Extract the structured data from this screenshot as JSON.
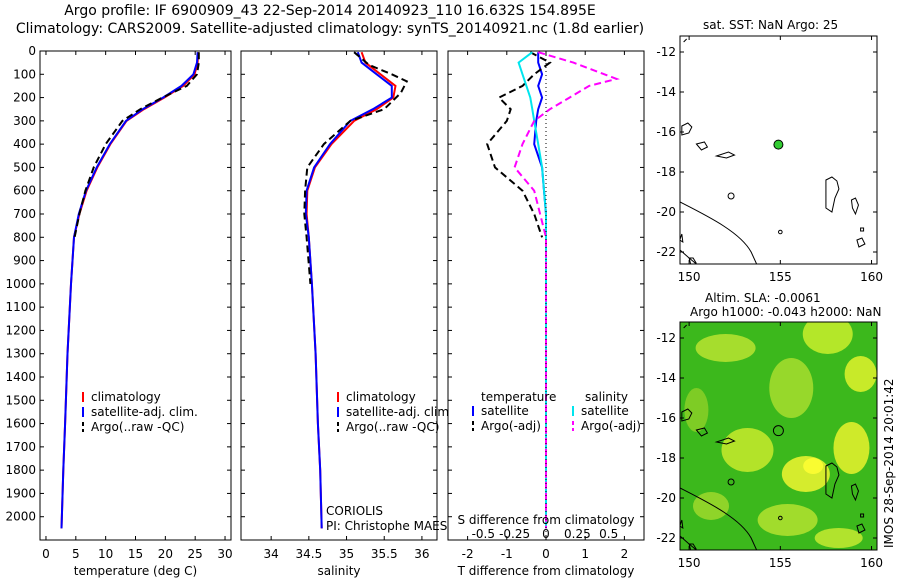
{
  "title": {
    "line1": "Argo profile: IF 6900909_43 22-Sep-2014 20140923_110 16.632S 154.895E",
    "line2": "Climatology: CARS2009. Satellite-adjusted climatology: synTS_20140921.nc (1.8d earlier)"
  },
  "colors": {
    "climatology": "#ff0000",
    "satellite": "#0000ff",
    "argo": "#000000",
    "sal_satellite": "#00e5ee",
    "sal_argo": "#ff00ff",
    "sla_light": "#ffff33",
    "sla_dark": "#1eae14"
  },
  "chart_data": [
    {
      "type": "line",
      "id": "temperature",
      "xlabel": "temperature (deg C)",
      "xlim": [
        -1,
        31
      ],
      "ylim": [
        2100,
        0
      ],
      "xticks": [
        0,
        5,
        10,
        15,
        20,
        25,
        30
      ],
      "yticks": [
        0,
        100,
        200,
        300,
        400,
        500,
        600,
        700,
        800,
        900,
        1000,
        1100,
        1200,
        1300,
        1400,
        1500,
        1600,
        1700,
        1800,
        1900,
        2000
      ],
      "legend": {
        "items": [
          "climatology",
          "satellite-adj. clim.",
          "Argo(..raw -QC)"
        ],
        "placement": "bottom-left"
      },
      "series": [
        {
          "name": "climatology",
          "x": [
            25.5,
            25.4,
            24.9,
            23.0,
            19.8,
            16.4,
            13.5,
            10.8,
            8.6,
            6.8,
            5.6,
            4.7,
            4.2,
            3.6,
            3.2,
            2.9,
            2.6
          ],
          "y": [
            5,
            50,
            100,
            150,
            200,
            250,
            300,
            400,
            500,
            600,
            700,
            800,
            1000,
            1300,
            1600,
            1800,
            2050
          ]
        },
        {
          "name": "satellite-adj. clim.",
          "x": [
            25.4,
            25.3,
            24.7,
            22.7,
            19.6,
            16.2,
            13.4,
            10.7,
            8.5,
            6.7,
            5.5,
            4.7,
            4.2,
            3.6,
            3.2,
            2.9,
            2.6
          ],
          "y": [
            5,
            50,
            100,
            150,
            200,
            250,
            300,
            400,
            500,
            600,
            700,
            800,
            1000,
            1300,
            1600,
            1800,
            2050
          ]
        },
        {
          "name": "Argo(..raw -QC)",
          "x": [
            25.6,
            25.6,
            25.3,
            23.6,
            19.5,
            15.8,
            12.8,
            10.0,
            8.0,
            6.6,
            5.6,
            4.8
          ],
          "y": [
            5,
            50,
            100,
            150,
            200,
            250,
            300,
            400,
            500,
            600,
            700,
            800
          ]
        }
      ]
    },
    {
      "type": "line",
      "id": "salinity",
      "xlabel": "salinity",
      "xlim": [
        33.6,
        36.2
      ],
      "ylim": [
        2100,
        0
      ],
      "xticks": [
        34,
        34.5,
        35,
        35.5,
        36
      ],
      "legend": {
        "items": [
          "climatology",
          "satellite-adj. clim.",
          "Argo(..raw -QC)"
        ],
        "placement": "bottom-left"
      },
      "annotation": [
        "CORIOLIS",
        "PI: Christophe MAES"
      ],
      "series": [
        {
          "name": "climatology",
          "x": [
            35.2,
            35.25,
            35.45,
            35.65,
            35.62,
            35.4,
            35.1,
            34.8,
            34.58,
            34.48,
            34.47,
            34.5,
            34.54,
            34.59,
            34.62,
            34.65,
            34.67
          ],
          "y": [
            5,
            50,
            100,
            150,
            200,
            250,
            300,
            400,
            500,
            600,
            700,
            800,
            1000,
            1300,
            1600,
            1800,
            2050
          ]
        },
        {
          "name": "satellite-adj. clim.",
          "x": [
            35.15,
            35.2,
            35.4,
            35.6,
            35.6,
            35.35,
            35.05,
            34.78,
            34.57,
            34.47,
            34.46,
            34.5,
            34.54,
            34.59,
            34.62,
            34.65,
            34.67
          ],
          "y": [
            5,
            50,
            100,
            150,
            200,
            250,
            300,
            400,
            500,
            600,
            700,
            800,
            1000,
            1300,
            1600,
            1800,
            2050
          ]
        },
        {
          "name": "Argo(..raw -QC)",
          "x": [
            35.1,
            35.3,
            35.6,
            35.8,
            35.72,
            35.5,
            35.05,
            34.7,
            34.48,
            34.45,
            34.44,
            34.47,
            34.52
          ],
          "y": [
            5,
            60,
            100,
            130,
            180,
            250,
            300,
            400,
            500,
            600,
            700,
            800,
            1000
          ]
        }
      ]
    },
    {
      "type": "line",
      "id": "difference",
      "xlabel": "T difference from climatology",
      "xlabel2": "S difference from climatology",
      "xlim": [
        -2.5,
        2.5
      ],
      "ylim": [
        2100,
        0
      ],
      "xticks": [
        -2,
        -1,
        0,
        1,
        2
      ],
      "xticks2_labels": [
        "-0.5",
        "-0.25",
        "0",
        "0.25",
        "0.5"
      ],
      "legend": {
        "headings": [
          "temperature",
          "salinity"
        ],
        "items": [
          "satellite",
          "Argo(-adj)",
          "satellite",
          "Argo(-adj)"
        ],
        "placement": "bottom"
      },
      "series": [
        {
          "name": "satellite",
          "quantity": "temperature",
          "x": [
            -0.2,
            -0.2,
            -0.1,
            -0.2,
            -0.1,
            -0.2,
            -0.25,
            -0.3,
            -0.1,
            -0.05,
            0,
            0,
            0
          ],
          "y": [
            5,
            50,
            100,
            150,
            200,
            250,
            300,
            400,
            500,
            600,
            700,
            900,
            2050
          ]
        },
        {
          "name": "Argo(-adj)",
          "quantity": "temperature",
          "x": [
            -0.4,
            0.1,
            -0.3,
            -0.6,
            -1.2,
            -0.9,
            -1.0,
            -1.5,
            -1.3,
            -0.6,
            -0.3,
            -0.1
          ],
          "y": [
            5,
            50,
            100,
            150,
            200,
            250,
            300,
            400,
            500,
            600,
            700,
            800
          ]
        },
        {
          "name": "satellite",
          "quantity": "salinity",
          "x": [
            -0.35,
            -0.7,
            -0.6,
            -0.5,
            -0.4,
            -0.35,
            -0.3,
            -0.2,
            -0.1,
            0,
            0
          ],
          "y": [
            5,
            50,
            100,
            150,
            200,
            250,
            300,
            400,
            500,
            700,
            2050
          ]
        },
        {
          "name": "Argo(-adj)",
          "quantity": "salinity",
          "x": [
            -0.2,
            0.7,
            1.8,
            1.1,
            0.6,
            0.1,
            -0.3,
            -0.6,
            -0.8,
            -0.3,
            0,
            0,
            0
          ],
          "y": [
            5,
            50,
            120,
            150,
            200,
            250,
            300,
            400,
            500,
            600,
            800,
            1000,
            2050
          ]
        }
      ]
    },
    {
      "type": "scatter",
      "id": "sst-map",
      "title": "sat. SST: NaN Argo: 25",
      "xlim": [
        149.5,
        160.3
      ],
      "ylim": [
        -22.6,
        -11.2
      ],
      "xticks": [
        150,
        155,
        160
      ],
      "yticks": [
        -12,
        -14,
        -16,
        -18,
        -20,
        -22
      ],
      "x": [
        154.895
      ],
      "y": [
        -16.632
      ]
    },
    {
      "type": "heatmap",
      "id": "sla-map",
      "title_line1": "Altim. SLA: -0.0061",
      "title_line2": "Argo h1000: -0.043 h2000: NaN",
      "xlim": [
        149.5,
        160.3
      ],
      "ylim": [
        -22.6,
        -11.2
      ],
      "xticks": [
        150,
        155,
        160
      ],
      "yticks": [
        -12,
        -14,
        -16,
        -18,
        -20,
        -22
      ],
      "x": [
        154.895
      ],
      "y": [
        -16.632
      ]
    }
  ],
  "footer": {
    "imos": "IMOS 28-Sep-2014 20:01:42"
  }
}
